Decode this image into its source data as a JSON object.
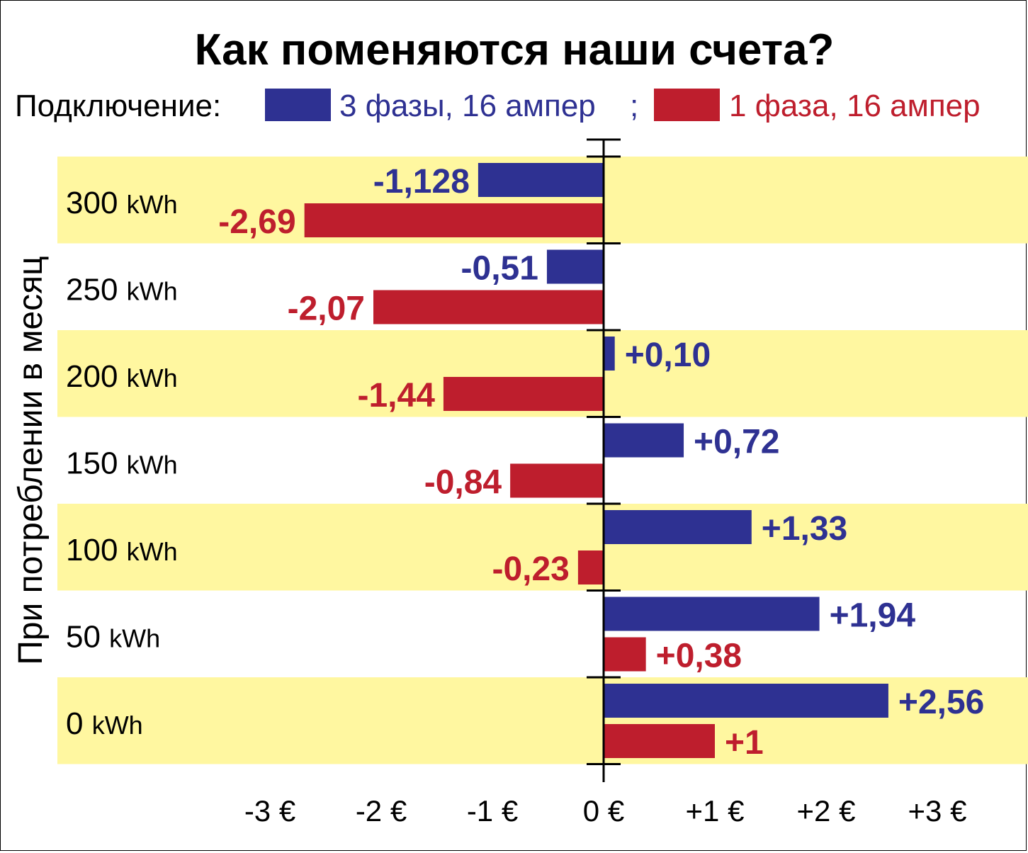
{
  "chart_data": {
    "type": "bar",
    "orientation": "horizontal",
    "title": "Как поменяются наши счета?",
    "legend_prefix": "Подключение:",
    "ylabel": "При потреблении в месяц",
    "unit_label": "kWh",
    "categories": [
      "300",
      "250",
      "200",
      "150",
      "100",
      "50",
      "0"
    ],
    "series": [
      {
        "name": "3 фазы, 16 ампер",
        "color": "#2e3192",
        "values": [
          -1.128,
          -0.51,
          0.1,
          0.72,
          1.33,
          1.94,
          2.56
        ],
        "labels": [
          "-1,128",
          "-0,51",
          "+0,10",
          "+0,72",
          "+1,33",
          "+1,94",
          "+2,56"
        ]
      },
      {
        "name": "1 фаза, 16 ампер",
        "color": "#be1e2d",
        "values": [
          -2.69,
          -2.07,
          -1.44,
          -0.84,
          -0.23,
          0.38,
          1
        ],
        "labels": [
          "-2,69",
          "-2,07",
          "-1,44",
          "-0,84",
          "-0,23",
          "+0,38",
          "+1"
        ]
      }
    ],
    "xlim": [
      -3.5,
      3.8
    ],
    "xticks": [
      -3,
      -2,
      -1,
      0,
      1,
      2,
      3
    ],
    "xtick_labels": [
      "-3 €",
      "-2 €",
      "-1 €",
      "0 €",
      "+1 €",
      "+2 €",
      "+3 €"
    ],
    "band_color": "#fff7a0",
    "grid": false,
    "legend_position": "top"
  }
}
